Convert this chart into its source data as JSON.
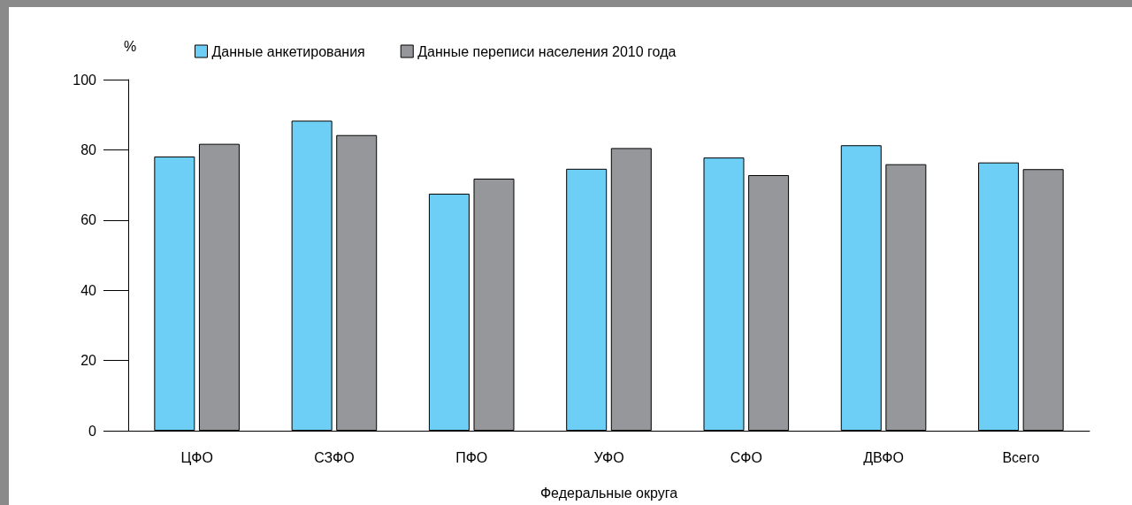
{
  "chart_data": {
    "type": "bar",
    "xlabel": "Федеральные округа",
    "ylabel": "%",
    "categories": [
      "ЦФО",
      "СЗФО",
      "ПФО",
      "УФО",
      "СФО",
      "ДВФО",
      "Всего"
    ],
    "series": [
      {
        "name": "Данные анкетирования",
        "color": "#6dcff6",
        "values": [
          78.1,
          88.3,
          67.5,
          74.6,
          77.8,
          81.3,
          76.4
        ]
      },
      {
        "name": "Данные переписи населения 2010 года",
        "color": "#96979b",
        "values": [
          81.7,
          84.2,
          71.8,
          80.5,
          72.8,
          75.9,
          74.5
        ]
      }
    ],
    "ylim": [
      0,
      100
    ],
    "yticks": [
      0,
      20,
      40,
      60,
      80,
      100
    ],
    "grid": false,
    "legend": "top"
  }
}
